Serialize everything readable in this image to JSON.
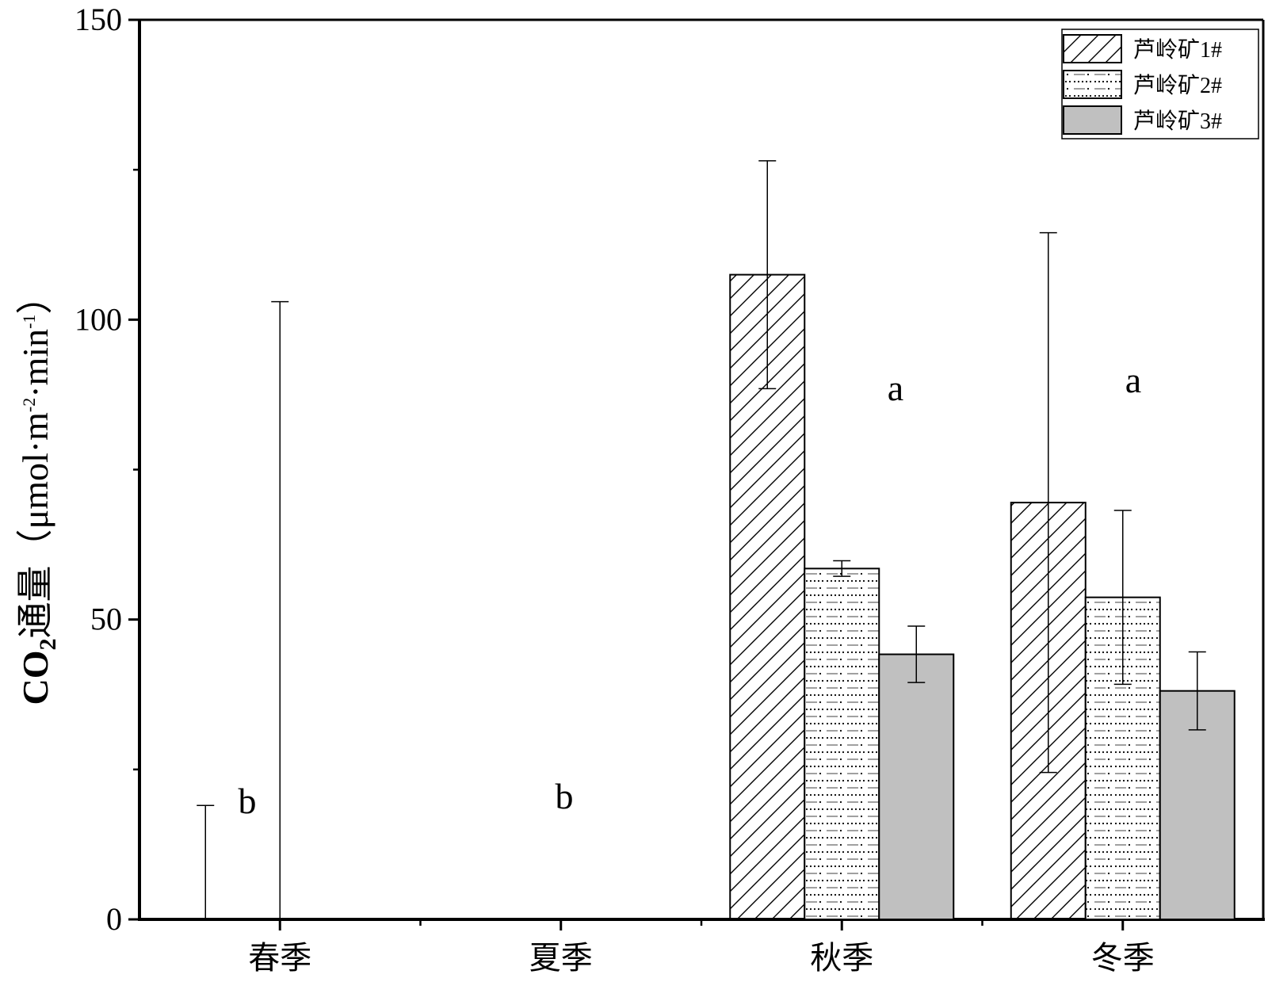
{
  "chart_data": {
    "type": "bar",
    "ylabel_main": "CO",
    "ylabel_sub": "2",
    "ylabel_rest": "通量（μmol·m",
    "ylabel_sup1": "-2",
    "ylabel_mid": "·min",
    "ylabel_sup2": "-1",
    "ylabel_end": "）",
    "xlabel": "",
    "ylim": [
      0,
      150
    ],
    "yticks": [
      "0",
      "50",
      "100",
      "150"
    ],
    "categories": [
      "春季",
      "夏季",
      "秋季",
      "冬季"
    ],
    "series": [
      {
        "name": "芦岭矿1#",
        "pattern": "hatch",
        "values": [
          0,
          0,
          107.5,
          69.5
        ],
        "errors": [
          19,
          0,
          19,
          45
        ]
      },
      {
        "name": "芦岭矿2#",
        "pattern": "dots-dashes",
        "values": [
          0,
          0,
          58.5,
          53.7
        ],
        "errors": [
          103,
          0,
          1.3,
          14.5
        ]
      },
      {
        "name": "芦岭矿3#",
        "pattern": "solid-gray",
        "values": [
          0,
          0,
          44.2,
          38.1
        ],
        "errors": [
          0,
          0,
          4.7,
          6.5
        ]
      }
    ],
    "significance_letters": [
      "b",
      "b",
      "a",
      "a"
    ],
    "legend_position": "top-right",
    "grid": false,
    "colors": {
      "bar_gray": "#c0c0c0",
      "stroke": "#000000",
      "background": "#ffffff"
    }
  }
}
